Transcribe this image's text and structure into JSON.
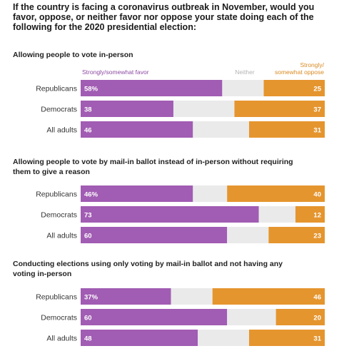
{
  "title_lines": [
    "If the country is facing a coronavirus outbreak in November, would you",
    "favor, oppose, or neither favor nor oppose your state doing each of the",
    "following for the 2020 presidential election:"
  ],
  "legend": {
    "favor": "Strongly/somewhat favor",
    "neither": "Neither",
    "oppose_lines": [
      "Strongly/",
      "somewhat oppose"
    ]
  },
  "colors": {
    "favor": "#a15cb3",
    "neither": "#eaeaea",
    "oppose": "#e5952e",
    "neither_label": "#b4b4b4",
    "favor_label": "#8c4aa3",
    "oppose_label": "#d98a24"
  },
  "chart_data": [
    {
      "type": "bar",
      "stacked": true,
      "orientation": "horizontal",
      "title_lines": [
        "Allowing people to vote in-person"
      ],
      "categories": [
        "Republicans",
        "Democrats",
        "All adults"
      ],
      "series": [
        {
          "name": "Strongly/somewhat favor",
          "values": [
            58,
            38,
            46
          ],
          "labels": [
            "58%",
            "38",
            "46"
          ]
        },
        {
          "name": "Neither",
          "values": [
            17,
            25,
            23
          ],
          "labels": [
            "",
            "",
            ""
          ]
        },
        {
          "name": "Strongly/somewhat oppose",
          "values": [
            25,
            37,
            31
          ],
          "labels": [
            "25",
            "37",
            "31"
          ]
        }
      ]
    },
    {
      "type": "bar",
      "stacked": true,
      "orientation": "horizontal",
      "title_lines": [
        "Allowing people to vote by mail-in ballot instead of in-person without requiring",
        "them to give a reason"
      ],
      "categories": [
        "Republicans",
        "Democrats",
        "All adults"
      ],
      "series": [
        {
          "name": "Strongly/somewhat favor",
          "values": [
            46,
            73,
            60
          ],
          "labels": [
            "46%",
            "73",
            "60"
          ]
        },
        {
          "name": "Neither",
          "values": [
            14,
            15,
            17
          ],
          "labels": [
            "",
            "",
            ""
          ]
        },
        {
          "name": "Strongly/somewhat oppose",
          "values": [
            40,
            12,
            23
          ],
          "labels": [
            "40",
            "12",
            "23"
          ]
        }
      ]
    },
    {
      "type": "bar",
      "stacked": true,
      "orientation": "horizontal",
      "title_lines": [
        "Conducting elections using only voting by mail-in ballot and not having any",
        "voting in-person"
      ],
      "categories": [
        "Republicans",
        "Democrats",
        "All adults"
      ],
      "series": [
        {
          "name": "Strongly/somewhat favor",
          "values": [
            37,
            60,
            48
          ],
          "labels": [
            "37%",
            "60",
            "48"
          ]
        },
        {
          "name": "Neither",
          "values": [
            17,
            20,
            21
          ],
          "labels": [
            "",
            "",
            ""
          ]
        },
        {
          "name": "Strongly/somewhat oppose",
          "values": [
            46,
            20,
            31
          ],
          "labels": [
            "46",
            "20",
            "31"
          ]
        }
      ]
    }
  ]
}
